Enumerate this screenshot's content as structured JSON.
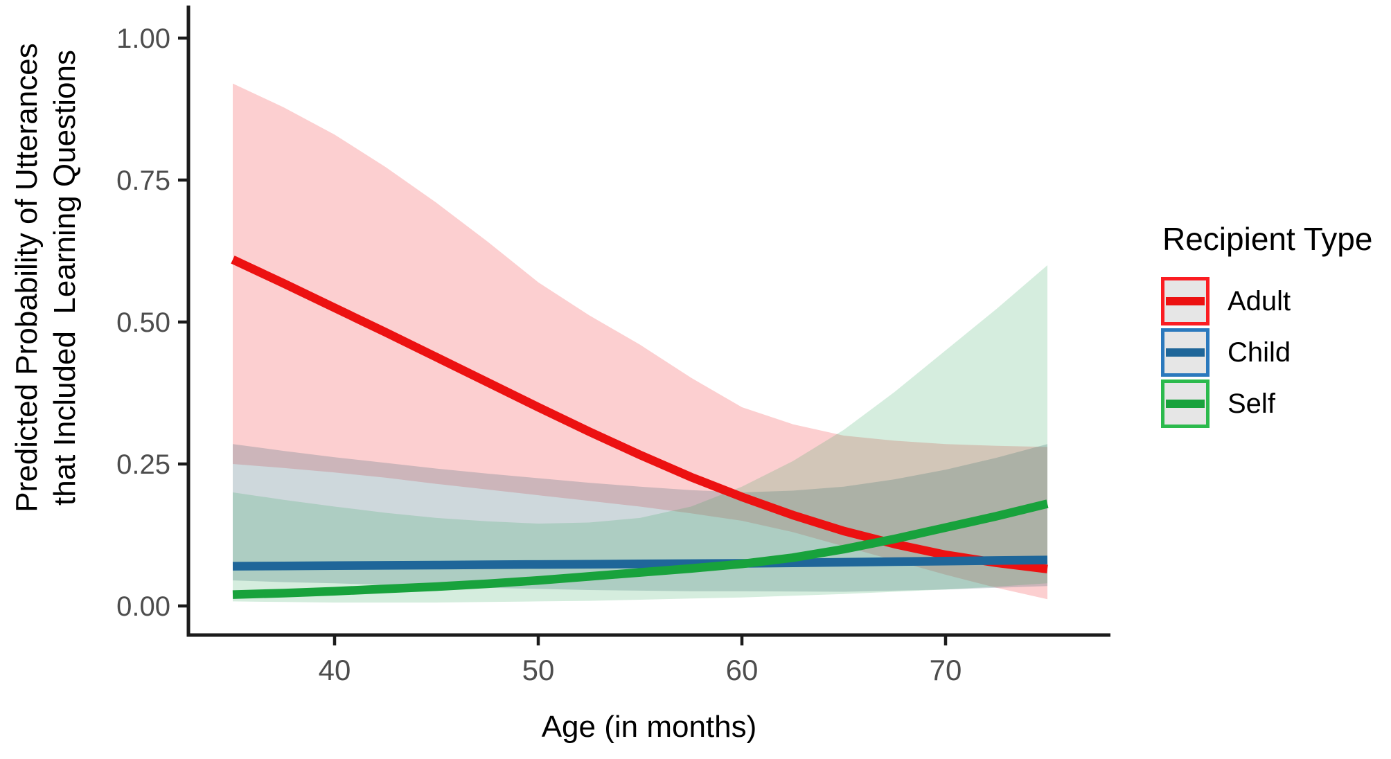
{
  "chart_data": {
    "type": "line",
    "xlabel": "Age (in months)",
    "ylabel_lines": [
      "Predicted Probability of Utterances",
      "that Included  Learning Questions"
    ],
    "xlim_data": [
      35,
      75
    ],
    "ylim": [
      0,
      1
    ],
    "grid": false,
    "x_ticks": [
      {
        "label": "40",
        "value": 40
      },
      {
        "label": "50",
        "value": 50
      },
      {
        "label": "60",
        "value": 60
      },
      {
        "label": "70",
        "value": 70
      }
    ],
    "y_ticks": [
      {
        "label": "1.00",
        "value": 1.0
      },
      {
        "label": "0.75",
        "value": 0.75
      },
      {
        "label": "0.50",
        "value": 0.5
      },
      {
        "label": "0.25",
        "value": 0.25
      },
      {
        "label": "0.00",
        "value": 0.0
      }
    ],
    "x": [
      35,
      37.5,
      40,
      42.5,
      45,
      47.5,
      50,
      52.5,
      55,
      57.5,
      60,
      62.5,
      65,
      67.5,
      70,
      72.5,
      75
    ],
    "series": [
      {
        "name": "Adult",
        "color": "#ec1111",
        "fill": "rgba(246,96,100,0.30)",
        "values": [
          0.61,
          0.568,
          0.525,
          0.482,
          0.438,
          0.394,
          0.35,
          0.307,
          0.266,
          0.227,
          0.192,
          0.16,
          0.132,
          0.109,
          0.09,
          0.076,
          0.065
        ],
        "upper": [
          0.92,
          0.878,
          0.83,
          0.773,
          0.71,
          0.642,
          0.57,
          0.512,
          0.46,
          0.402,
          0.35,
          0.32,
          0.3,
          0.291,
          0.285,
          0.282,
          0.28
        ],
        "lower": [
          0.25,
          0.243,
          0.235,
          0.226,
          0.215,
          0.205,
          0.195,
          0.185,
          0.175,
          0.163,
          0.15,
          0.13,
          0.105,
          0.08,
          0.055,
          0.032,
          0.012
        ]
      },
      {
        "name": "Child",
        "color": "#1f6699",
        "fill": "rgba(80,115,130,0.28)",
        "values": [
          0.07,
          0.0705,
          0.071,
          0.0715,
          0.072,
          0.0725,
          0.073,
          0.0735,
          0.074,
          0.0745,
          0.075,
          0.076,
          0.077,
          0.078,
          0.079,
          0.08,
          0.081
        ],
        "upper": [
          0.285,
          0.273,
          0.262,
          0.252,
          0.242,
          0.233,
          0.225,
          0.217,
          0.21,
          0.204,
          0.2,
          0.203,
          0.21,
          0.223,
          0.24,
          0.261,
          0.285
        ],
        "lower": [
          0.045,
          0.042,
          0.04,
          0.037,
          0.034,
          0.032,
          0.03,
          0.028,
          0.027,
          0.026,
          0.026,
          0.0255,
          0.025,
          0.027,
          0.029,
          0.032,
          0.035
        ]
      },
      {
        "name": "Self",
        "color": "#18a23c",
        "fill": "rgba(45,165,90,0.20)",
        "values": [
          0.02,
          0.0225,
          0.026,
          0.03,
          0.034,
          0.039,
          0.045,
          0.052,
          0.059,
          0.066,
          0.074,
          0.085,
          0.1,
          0.118,
          0.138,
          0.158,
          0.18
        ],
        "upper": [
          0.2,
          0.187,
          0.175,
          0.164,
          0.155,
          0.149,
          0.145,
          0.147,
          0.155,
          0.175,
          0.21,
          0.255,
          0.31,
          0.377,
          0.45,
          0.523,
          0.6
        ],
        "lower": [
          0.008,
          0.007,
          0.006,
          0.006,
          0.006,
          0.007,
          0.008,
          0.009,
          0.011,
          0.013,
          0.015,
          0.018,
          0.021,
          0.025,
          0.029,
          0.034,
          0.04
        ]
      }
    ],
    "legend": {
      "title": "Recipient Type",
      "position": "right",
      "entries": [
        {
          "label": "Adult",
          "line_color": "#ec1111",
          "border_color": "#fb1d22"
        },
        {
          "label": "Child",
          "line_color": "#1f6699",
          "border_color": "#2b79bd"
        },
        {
          "label": "Self",
          "line_color": "#18a23c",
          "border_color": "#2cba4d"
        }
      ]
    },
    "colors": {
      "axis": "#1b1b1b",
      "tick_label": "#4d4d4d",
      "title": "#000000"
    }
  }
}
